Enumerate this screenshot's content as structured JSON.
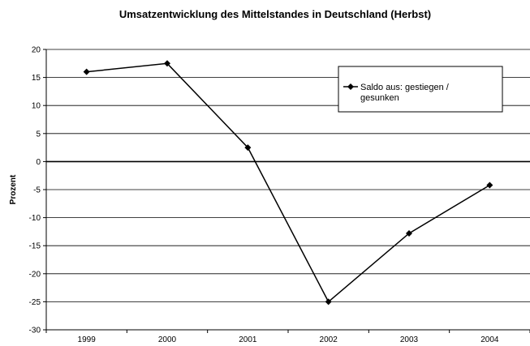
{
  "chart_data": {
    "type": "line",
    "title": "Umsatzentwicklung des Mittelstandes in Deutschland (Herbst)",
    "xlabel": "",
    "ylabel": "Prozent",
    "categories": [
      "1999",
      "2000",
      "2001",
      "2002",
      "2003",
      "2004"
    ],
    "series": [
      {
        "name": "Saldo aus: gestiegen / gesunken",
        "values": [
          16,
          17.5,
          2.5,
          -25,
          -12.8,
          -4.2
        ],
        "color": "#000000",
        "marker": "diamond"
      }
    ],
    "ylim": [
      -30,
      20
    ],
    "yticks": [
      20,
      15,
      10,
      5,
      0,
      -5,
      -10,
      -15,
      -20,
      -25,
      -30
    ],
    "grid": true,
    "legend": "top-right",
    "legend_lines": [
      "Saldo aus: gestiegen /",
      "gesunken"
    ]
  }
}
